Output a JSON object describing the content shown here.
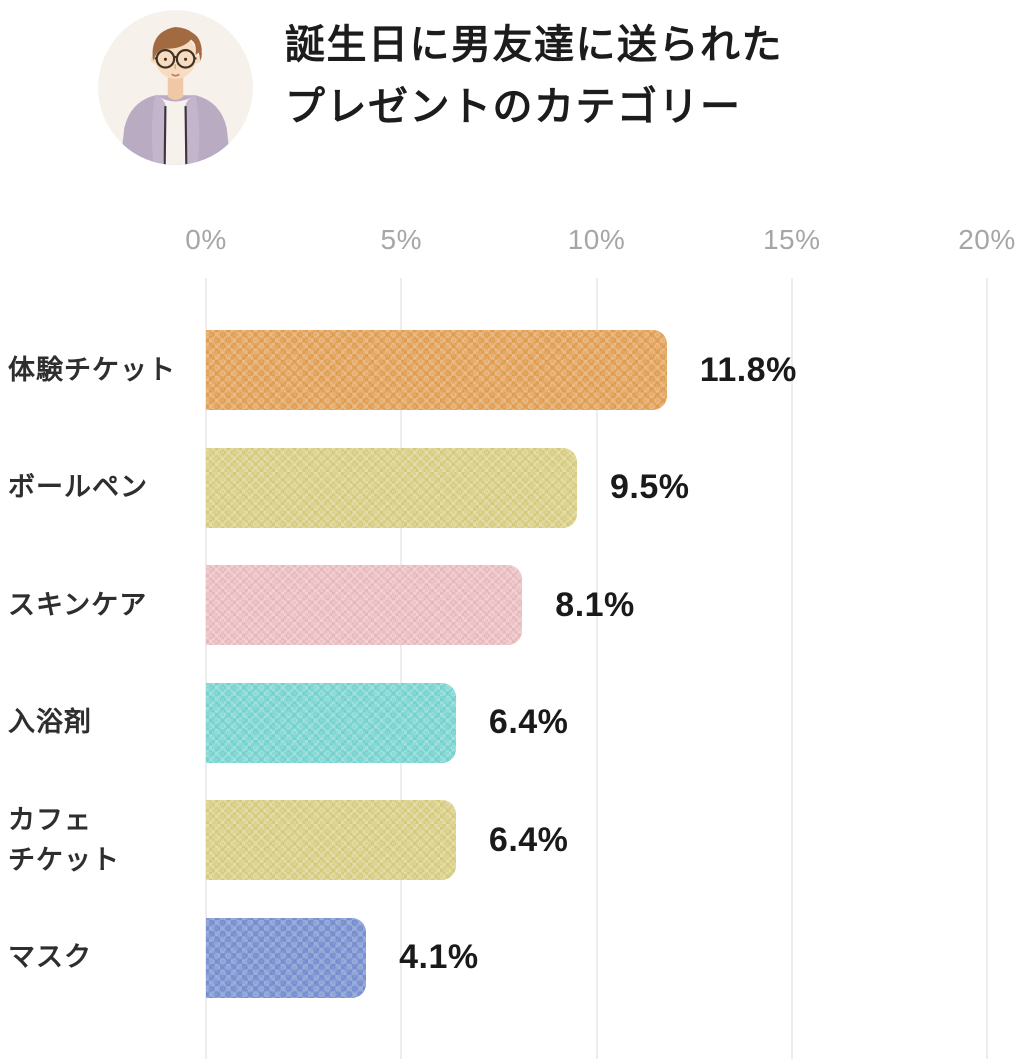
{
  "header": {
    "title_line1": "誕生日に男友達に送られた",
    "title_line2": "プレゼントのカテゴリー",
    "avatar_icon": "man-with-glasses-illustration",
    "avatar_bg_color": "#f6f1eb"
  },
  "chart_data": {
    "type": "bar",
    "orientation": "horizontal",
    "title": "誕生日に男友達に送られたプレゼントのカテゴリー",
    "categories": [
      "体験チケット",
      "ボールペン",
      "スキンケア",
      "入浴剤",
      "カフェ\nチケット",
      "マスク"
    ],
    "values": [
      11.8,
      9.5,
      8.1,
      6.4,
      6.4,
      4.1
    ],
    "value_labels": [
      "11.8%",
      "9.5%",
      "8.1%",
      "6.4%",
      "6.4%",
      "4.1%"
    ],
    "bar_colors": [
      "#e8a75c",
      "#dfd489",
      "#f2c3c7",
      "#7fdbd7",
      "#dfd489",
      "#7e96d6"
    ],
    "x_axis": {
      "ticks": [
        "0%",
        "5%",
        "10%",
        "15%",
        "20%"
      ],
      "tick_values": [
        0,
        5,
        10,
        15,
        20
      ],
      "xlim": [
        0,
        20
      ]
    },
    "grid": true,
    "grid_color": "#ededed",
    "tick_color": "#a6a6a6",
    "category_label_color": "#2e2e2e",
    "value_label_color": "#1a1a1a",
    "legend": "none"
  }
}
